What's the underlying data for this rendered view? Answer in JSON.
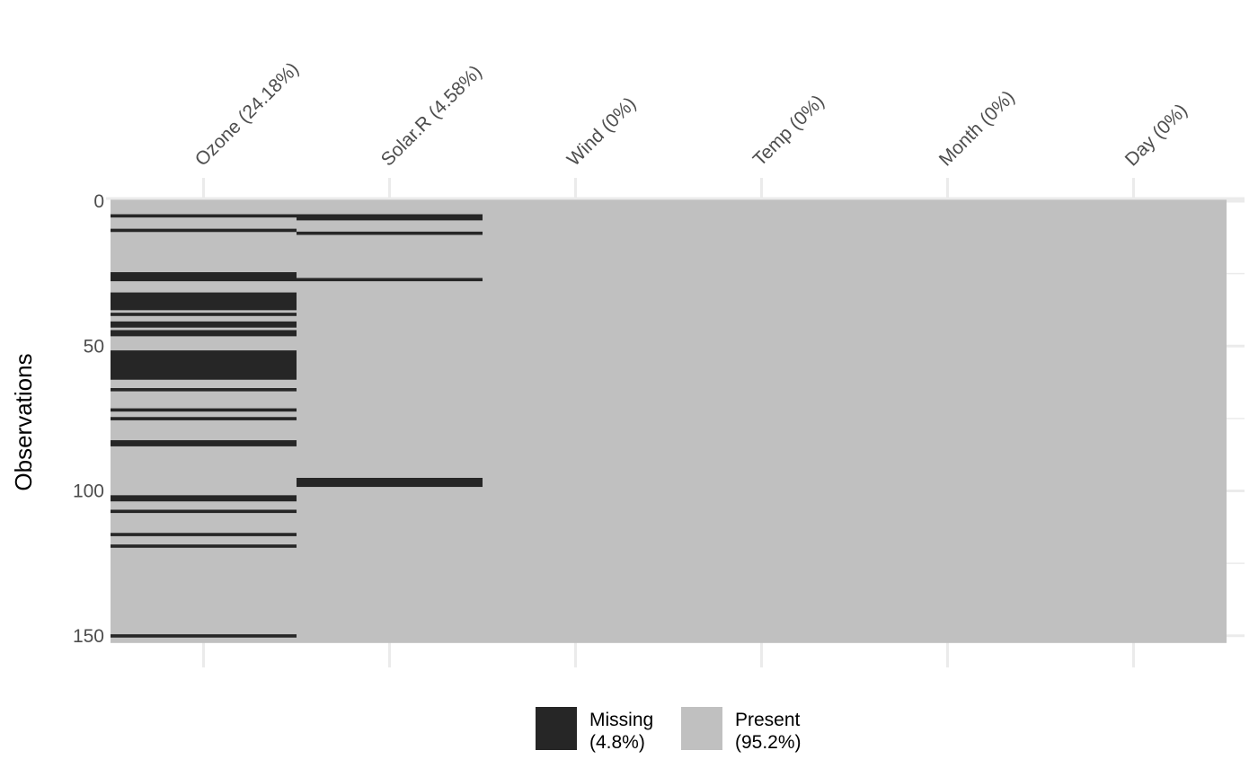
{
  "chart_data": {
    "type": "heatmap",
    "title": "",
    "xlabel": "",
    "ylabel": "Observations",
    "n_observations": 153,
    "ylim": [
      0,
      153
    ],
    "y_ticks": [
      0,
      50,
      100,
      150
    ],
    "y_tick_labels": [
      "0",
      "50",
      "100",
      "150"
    ],
    "columns": [
      {
        "name": "Ozone",
        "label": "Ozone (24.18%)",
        "missing_pct": 24.18,
        "missing_rows": [
          5,
          10,
          25,
          26,
          27,
          32,
          33,
          34,
          35,
          36,
          37,
          39,
          42,
          43,
          45,
          46,
          52,
          53,
          54,
          55,
          56,
          57,
          58,
          59,
          60,
          61,
          65,
          72,
          75,
          83,
          84,
          102,
          103,
          107,
          115,
          119,
          150
        ]
      },
      {
        "name": "Solar.R",
        "label": "Solar.R (4.58%)",
        "missing_pct": 4.58,
        "missing_rows": [
          5,
          6,
          11,
          27,
          96,
          97,
          98
        ]
      },
      {
        "name": "Wind",
        "label": "Wind (0%)",
        "missing_pct": 0,
        "missing_rows": []
      },
      {
        "name": "Temp",
        "label": "Temp (0%)",
        "missing_pct": 0,
        "missing_rows": []
      },
      {
        "name": "Month",
        "label": "Month (0%)",
        "missing_pct": 0,
        "missing_rows": []
      },
      {
        "name": "Day",
        "label": "Day (0%)",
        "missing_pct": 0,
        "missing_rows": []
      }
    ],
    "grid": true,
    "legend": {
      "position": "bottom",
      "items": [
        {
          "label": "Missing",
          "pct": "(4.8%)",
          "color": "#262626"
        },
        {
          "label": "Present",
          "pct": "(95.2%)",
          "color": "#c0c0c0"
        }
      ]
    },
    "colors": {
      "missing": "#262626",
      "present": "#c0c0c0",
      "grid": "#ebebeb"
    }
  }
}
